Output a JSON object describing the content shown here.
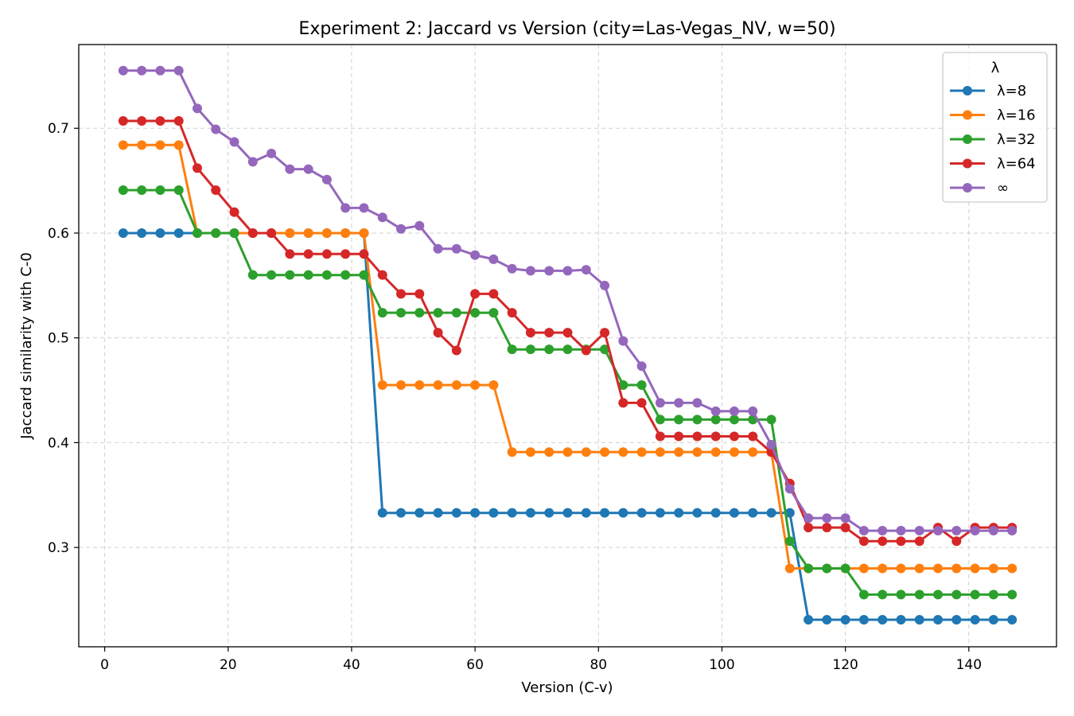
{
  "chart_data": {
    "type": "line",
    "title": "Experiment 2: Jaccard vs Version  (city=Las-Vegas_NV, w=50)",
    "xlabel": "Version (C-v)",
    "ylabel": "Jaccard similarity with C-0",
    "xlim": [
      -4.2,
      154.2
    ],
    "ylim": [
      0.2052,
      0.7799
    ],
    "xticks": [
      0,
      20,
      40,
      60,
      80,
      100,
      120,
      140
    ],
    "yticks": [
      0.3,
      0.4,
      0.5,
      0.6,
      0.7
    ],
    "ytick_labels": [
      "0.3",
      "0.4",
      "0.5",
      "0.6",
      "0.7"
    ],
    "grid": true,
    "legend": {
      "title": "λ",
      "placement": "top-right"
    },
    "x": [
      3,
      6,
      9,
      12,
      15,
      18,
      21,
      24,
      27,
      30,
      33,
      36,
      39,
      42,
      45,
      48,
      51,
      54,
      57,
      60,
      63,
      66,
      69,
      72,
      75,
      78,
      81,
      84,
      87,
      90,
      93,
      96,
      99,
      102,
      105,
      108,
      111,
      114,
      117,
      120,
      123,
      126,
      129,
      132,
      135,
      138,
      141,
      144,
      147
    ],
    "series": [
      {
        "name": "λ=8",
        "color": "#1f77b4",
        "values": [
          0.6,
          0.6,
          0.6,
          0.6,
          0.6,
          0.6,
          0.6,
          0.6,
          0.6,
          0.6,
          0.6,
          0.6,
          0.6,
          0.6,
          0.333,
          0.333,
          0.333,
          0.333,
          0.333,
          0.333,
          0.333,
          0.333,
          0.333,
          0.333,
          0.333,
          0.333,
          0.333,
          0.333,
          0.333,
          0.333,
          0.333,
          0.333,
          0.333,
          0.333,
          0.333,
          0.333,
          0.333,
          0.231,
          0.231,
          0.231,
          0.231,
          0.231,
          0.231,
          0.231,
          0.231,
          0.231,
          0.231,
          0.231,
          0.231
        ]
      },
      {
        "name": "λ=16",
        "color": "#ff7f0e",
        "values": [
          0.684,
          0.684,
          0.684,
          0.684,
          0.6,
          0.6,
          0.6,
          0.6,
          0.6,
          0.6,
          0.6,
          0.6,
          0.6,
          0.6,
          0.455,
          0.455,
          0.455,
          0.455,
          0.455,
          0.455,
          0.455,
          0.391,
          0.391,
          0.391,
          0.391,
          0.391,
          0.391,
          0.391,
          0.391,
          0.391,
          0.391,
          0.391,
          0.391,
          0.391,
          0.391,
          0.391,
          0.28,
          0.28,
          0.28,
          0.28,
          0.28,
          0.28,
          0.28,
          0.28,
          0.28,
          0.28,
          0.28,
          0.28,
          0.28
        ]
      },
      {
        "name": "λ=32",
        "color": "#2ca02c",
        "values": [
          0.641,
          0.641,
          0.641,
          0.641,
          0.6,
          0.6,
          0.6,
          0.56,
          0.56,
          0.56,
          0.56,
          0.56,
          0.56,
          0.56,
          0.524,
          0.524,
          0.524,
          0.524,
          0.524,
          0.524,
          0.524,
          0.489,
          0.489,
          0.489,
          0.489,
          0.489,
          0.489,
          0.455,
          0.455,
          0.422,
          0.422,
          0.422,
          0.422,
          0.422,
          0.422,
          0.422,
          0.306,
          0.28,
          0.28,
          0.28,
          0.255,
          0.255,
          0.255,
          0.255,
          0.255,
          0.255,
          0.255,
          0.255,
          0.255
        ]
      },
      {
        "name": "λ=64",
        "color": "#d62728",
        "values": [
          0.707,
          0.707,
          0.707,
          0.707,
          0.662,
          0.641,
          0.62,
          0.6,
          0.6,
          0.58,
          0.58,
          0.58,
          0.58,
          0.58,
          0.56,
          0.542,
          0.542,
          0.505,
          0.488,
          0.542,
          0.542,
          0.524,
          0.505,
          0.505,
          0.505,
          0.488,
          0.505,
          0.438,
          0.438,
          0.406,
          0.406,
          0.406,
          0.406,
          0.406,
          0.406,
          0.391,
          0.361,
          0.319,
          0.319,
          0.319,
          0.306,
          0.306,
          0.306,
          0.306,
          0.319,
          0.306,
          0.319,
          0.319,
          0.319
        ]
      },
      {
        "name": "∞",
        "color": "#9467bd",
        "values": [
          0.755,
          0.755,
          0.755,
          0.755,
          0.719,
          0.699,
          0.687,
          0.668,
          0.676,
          0.661,
          0.661,
          0.651,
          0.624,
          0.624,
          0.615,
          0.604,
          0.607,
          0.585,
          0.585,
          0.579,
          0.575,
          0.566,
          0.564,
          0.564,
          0.564,
          0.565,
          0.55,
          0.497,
          0.473,
          0.438,
          0.438,
          0.438,
          0.43,
          0.43,
          0.43,
          0.398,
          0.356,
          0.328,
          0.328,
          0.328,
          0.316,
          0.316,
          0.316,
          0.316,
          0.316,
          0.316,
          0.316,
          0.316,
          0.316
        ]
      }
    ]
  }
}
